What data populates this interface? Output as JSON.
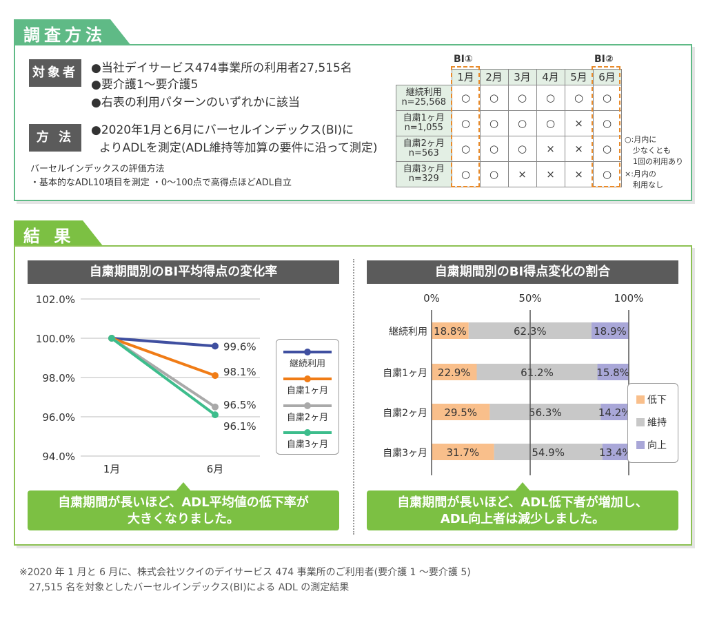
{
  "method": {
    "tab_label": "調査方法",
    "subjects_label": "対象者",
    "subjects": [
      "●当社デイサービス474事業所の利用者27,515名",
      "●要介護1〜要介護5",
      "●右表の利用パターンのいずれかに該当"
    ],
    "method_label": "方 法",
    "method_lines": [
      "●2020年1月と6月にバーセルインデックス(BI)に",
      "よりADLを測定(ADL維持等加算の要件に沿って測定)"
    ],
    "bi_note_title": "バーセルインデックスの評価方法",
    "bi_note_body": "・基本的なADL10項目を測定 ・0〜100点で高得点ほどADL自立"
  },
  "pattern_table": {
    "bi1": "BI①",
    "bi2": "BI②",
    "months": [
      "1月",
      "2月",
      "3月",
      "4月",
      "5月",
      "6月"
    ],
    "rows": [
      {
        "name": "継続利用",
        "n": "n=25,568",
        "marks": [
          "○",
          "○",
          "○",
          "○",
          "○",
          "○"
        ]
      },
      {
        "name": "自粛1ヶ月",
        "n": "n=1,055",
        "marks": [
          "○",
          "○",
          "○",
          "○",
          "×",
          "○"
        ]
      },
      {
        "name": "自粛2ヶ月",
        "n": "n=563",
        "marks": [
          "○",
          "○",
          "○",
          "×",
          "×",
          "○"
        ]
      },
      {
        "name": "自粛3ヶ月",
        "n": "n=329",
        "marks": [
          "○",
          "○",
          "×",
          "×",
          "×",
          "○"
        ]
      }
    ],
    "legend_o_1": "○:月内に",
    "legend_o_2": "少なくとも",
    "legend_o_3": "1回の利用あり",
    "legend_x_1": "×:月内の",
    "legend_x_2": "利用なし"
  },
  "results": {
    "tab_label": "結 果",
    "left_title": "自粛期間別のBI平均得点の変化率",
    "right_title": "自粛期間別のBI得点変化の割合",
    "left_callout_1": "自粛期間が長いほど、ADL平均値の低下率が",
    "left_callout_2": "大きくなりました。",
    "right_callout_1": "自粛期間が長いほど、ADL低下者が増加し、",
    "right_callout_2": "ADL向上者は減少しました。"
  },
  "footnote_1": "※2020 年 1 月と 6 月に、株式会社ツクイのデイサービス 474 事業所のご利用者(要介護 1 〜要介護 5)",
  "footnote_2": "27,515 名を対象としたバーセルインデックス(BI)による ADL の測定結果",
  "colors": {
    "method_green": "#5fba86",
    "result_green": "#7cc043",
    "continuous": "#3f4fa0",
    "m1": "#f07c16",
    "m2": "#a9a9a9",
    "m3": "#3dbd8c",
    "decline": "#f9bf8b",
    "maintain": "#c8c8c8",
    "improve": "#a9a7d8"
  },
  "chart_data": [
    {
      "type": "line",
      "title": "自粛期間別のBI平均得点の変化率",
      "x": [
        "1月",
        "6月"
      ],
      "ylim": [
        94.0,
        102.0
      ],
      "yticks": [
        "94.0%",
        "96.0%",
        "98.0%",
        "100.0%",
        "102.0%"
      ],
      "ytick_values": [
        94,
        96,
        98,
        100,
        102
      ],
      "series": [
        {
          "name": "継続利用",
          "values": [
            100.0,
            99.6
          ],
          "end_label": "99.6%"
        },
        {
          "name": "自粛1ヶ月",
          "values": [
            100.0,
            98.1
          ],
          "end_label": "98.1%"
        },
        {
          "name": "自粛2ヶ月",
          "values": [
            100.0,
            96.5
          ],
          "end_label": "96.5%"
        },
        {
          "name": "自粛3ヶ月",
          "values": [
            100.0,
            96.1
          ],
          "end_label": "96.1%"
        }
      ],
      "legend": "right"
    },
    {
      "type": "bar",
      "orientation": "horizontal-stacked",
      "title": "自粛期間別のBI得点変化の割合",
      "categories": [
        "継続利用",
        "自粛1ヶ月",
        "自粛2ヶ月",
        "自粛3ヶ月"
      ],
      "xticks": [
        "0%",
        "50%",
        "100%"
      ],
      "series": [
        {
          "name": "低下",
          "values": [
            18.8,
            22.9,
            29.5,
            31.7
          ],
          "labels": [
            "18.8%",
            "22.9%",
            "29.5%",
            "31.7%"
          ]
        },
        {
          "name": "維持",
          "values": [
            62.3,
            61.2,
            56.3,
            54.9
          ],
          "labels": [
            "62.3%",
            "61.2%",
            "56.3%",
            "54.9%"
          ]
        },
        {
          "name": "向上",
          "values": [
            18.9,
            15.8,
            14.2,
            13.4
          ],
          "labels": [
            "18.9%",
            "15.8%",
            "14.2%",
            "13.4%"
          ]
        }
      ],
      "legend": "right"
    }
  ]
}
